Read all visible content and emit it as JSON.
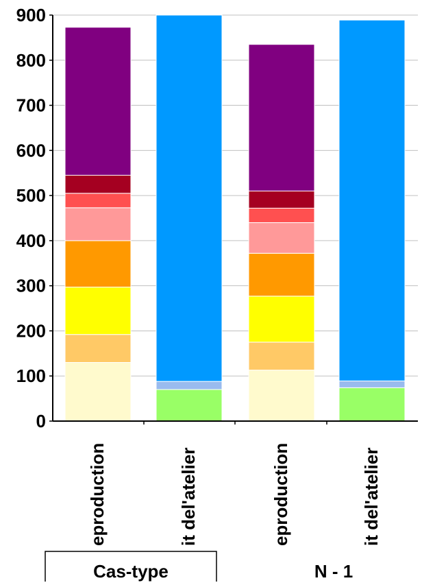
{
  "chart_data": {
    "type": "bar",
    "stacked": true,
    "categories": [
      "eproduction",
      "it del'atelier",
      "eproduction",
      "it del'atelier"
    ],
    "groups": [
      {
        "label": "Cas-type",
        "boxed": true
      },
      {
        "label": "N - 1",
        "boxed": false
      }
    ],
    "ylim": [
      0,
      900
    ],
    "yticks": [
      "0",
      "100",
      "200",
      "300",
      "400",
      "500",
      "600",
      "700",
      "800",
      "900"
    ],
    "grid": true,
    "series": [
      {
        "color": "#FFFACD",
        "values": [
          130,
          0,
          113,
          0
        ]
      },
      {
        "color": "#FFC966",
        "values": [
          62,
          0,
          62,
          0
        ]
      },
      {
        "color": "#FFFF00",
        "values": [
          105,
          0,
          102,
          0
        ]
      },
      {
        "color": "#FF9900",
        "values": [
          103,
          0,
          95,
          0
        ]
      },
      {
        "color": "#FF9999",
        "values": [
          73,
          0,
          68,
          0
        ]
      },
      {
        "color": "#FF5050",
        "values": [
          32,
          0,
          32,
          0
        ]
      },
      {
        "color": "#A50021",
        "values": [
          40,
          0,
          38,
          0
        ]
      },
      {
        "color": "#800080",
        "values": [
          328,
          0,
          325,
          0
        ]
      },
      {
        "color": "#99FF66",
        "values": [
          0,
          70,
          0,
          74
        ]
      },
      {
        "color": "#99BBEE",
        "values": [
          0,
          18,
          0,
          15
        ]
      },
      {
        "color": "#0099FF",
        "values": [
          0,
          812,
          0,
          800
        ]
      }
    ]
  }
}
